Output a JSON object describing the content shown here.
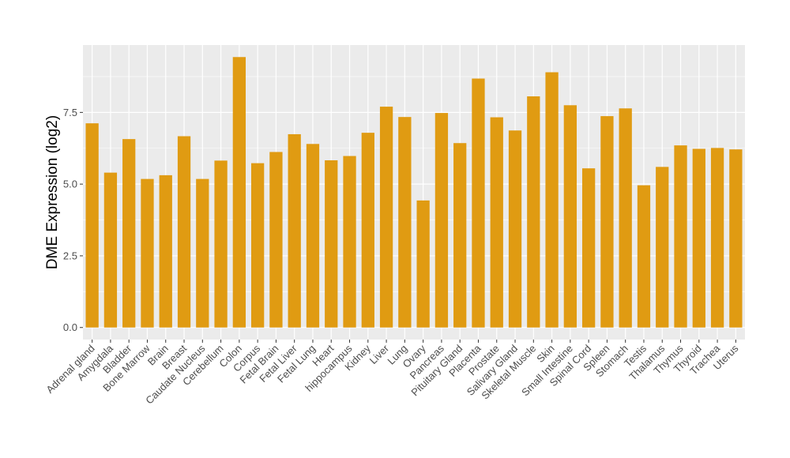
{
  "chart_data": {
    "type": "bar",
    "title": "",
    "xlabel": "",
    "ylabel": "DME Expression (log2)",
    "ylim": [
      -0.42,
      9.85
    ],
    "yticks": [
      0.0,
      2.5,
      5.0,
      7.5
    ],
    "ytick_labels": [
      "0.0",
      "2.5",
      "5.0",
      "7.5"
    ],
    "grid": true,
    "legend": "none",
    "bar_color": "#E09B12",
    "panel_color": "#EBEBEB",
    "grid_color": "#FFFFFF",
    "categories": [
      "Adrenal gland",
      "Amygdala",
      "Bladder",
      "Bone Marrow",
      "Brain",
      "Breast",
      "Caudate Nucleus",
      "Cerebellum",
      "Colon",
      "Corpus",
      "Fetal Brain",
      "Fetal Liver",
      "Fetal Lung",
      "Heart",
      "hippocampus",
      "Kidney",
      "Liver",
      "Lung",
      "Ovary",
      "Pancreas",
      "Pituitary Gland",
      "Placenta",
      "Prostate",
      "Salivary Gland",
      "Skeletal Muscle",
      "Skin",
      "Small Intestine",
      "Spinal Cord",
      "Spleen",
      "Stomach",
      "Testis",
      "Thalamus",
      "Thymus",
      "Thyroid",
      "Trachea",
      "Uterus"
    ],
    "values": [
      7.12,
      5.4,
      6.57,
      5.18,
      5.31,
      6.67,
      5.18,
      5.82,
      9.43,
      5.73,
      6.12,
      6.74,
      6.4,
      5.83,
      5.98,
      6.79,
      7.7,
      7.34,
      4.43,
      7.48,
      6.43,
      8.68,
      7.33,
      6.87,
      8.06,
      8.9,
      7.75,
      5.55,
      7.37,
      7.64,
      4.96,
      5.6,
      6.35,
      6.23,
      6.26,
      6.21
    ]
  }
}
